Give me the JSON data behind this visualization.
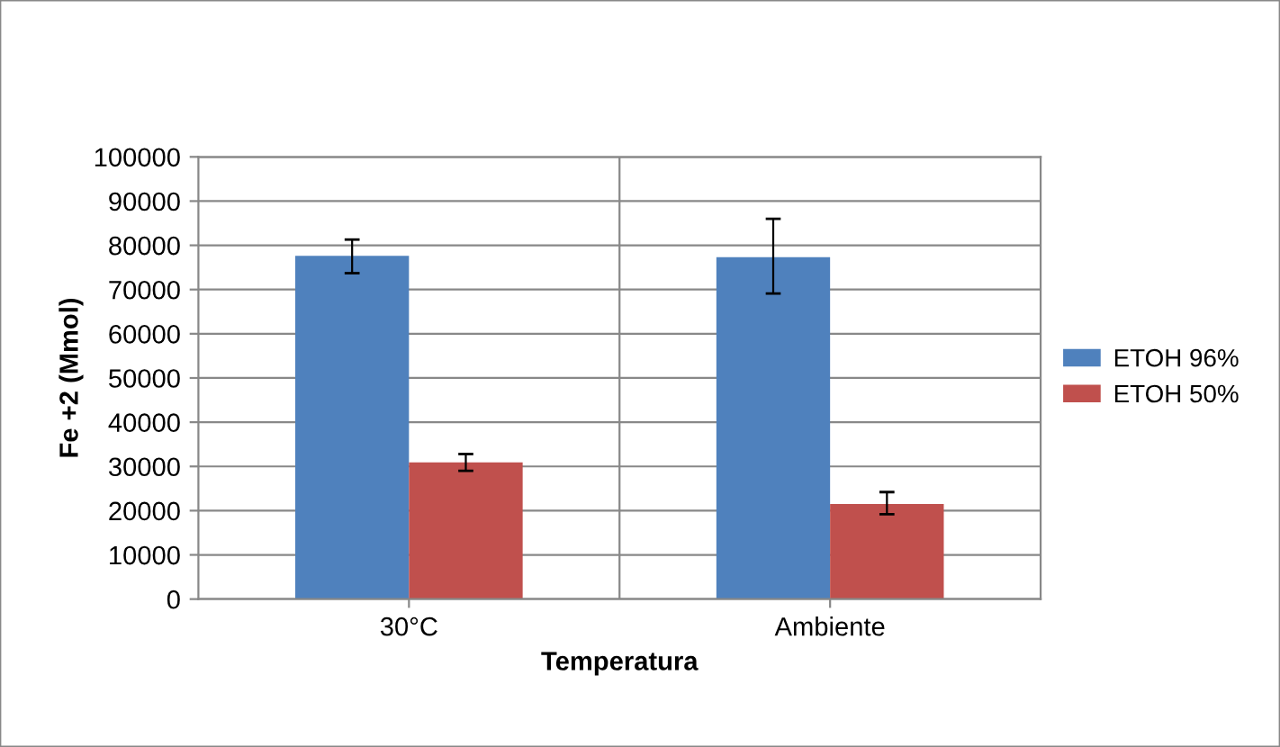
{
  "chart_data": {
    "type": "bar",
    "xlabel": "Temperatura",
    "ylabel": "Fe +2 (Mmol)",
    "categories": [
      "30°C",
      "Ambiente"
    ],
    "series": [
      {
        "name": "ETOH 96%",
        "color": "#4f81bd",
        "values": [
          77600,
          77300
        ],
        "errors": [
          [
            73700,
            81300
          ],
          [
            69100,
            86000
          ]
        ]
      },
      {
        "name": "ETOH 50%",
        "color": "#c0504d",
        "values": [
          30900,
          21500
        ],
        "errors": [
          [
            29000,
            32800
          ],
          [
            19200,
            24200
          ]
        ]
      }
    ],
    "ylim": [
      0,
      100000
    ],
    "yticks": [
      0,
      10000,
      20000,
      30000,
      40000,
      50000,
      60000,
      70000,
      80000,
      90000,
      100000
    ],
    "grid": "y",
    "legend": "right"
  }
}
